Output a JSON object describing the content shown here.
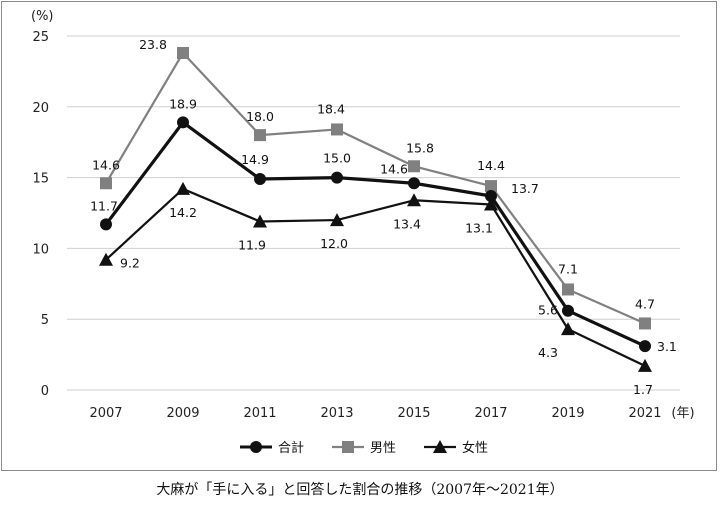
{
  "chart_data": {
    "type": "line",
    "categories": [
      "2007",
      "2009",
      "2011",
      "2013",
      "2015",
      "2017",
      "2019",
      "2021"
    ],
    "y_unit": "(%)",
    "x_unit": "(年)",
    "ylim": [
      0,
      25
    ],
    "yticks": [
      0,
      5,
      10,
      15,
      20,
      25
    ],
    "grid": true,
    "legend_position": "bottom-center",
    "series": [
      {
        "name": "合計",
        "marker": "circle",
        "color": "#111111",
        "values": [
          11.7,
          18.9,
          14.9,
          15.0,
          14.6,
          13.7,
          5.6,
          3.1
        ],
        "labels": [
          "11.7",
          "18.9",
          "14.9",
          "15.0",
          "14.6",
          "13.7",
          "5.6",
          "3.1"
        ]
      },
      {
        "name": "男性",
        "marker": "square",
        "color": "#808080",
        "values": [
          14.6,
          23.8,
          18.0,
          18.4,
          15.8,
          14.4,
          7.1,
          4.7
        ],
        "labels": [
          "14.6",
          "23.8",
          "18.0",
          "18.4",
          "15.8",
          "14.4",
          "7.1",
          "4.7"
        ]
      },
      {
        "name": "女性",
        "marker": "triangle",
        "color": "#111111",
        "values": [
          9.2,
          14.2,
          11.9,
          12.0,
          13.4,
          13.1,
          4.3,
          1.7
        ],
        "labels": [
          "9.2",
          "14.2",
          "11.9",
          "12.0",
          "13.4",
          "13.1",
          "4.3",
          "1.7"
        ]
      }
    ]
  },
  "caption": "大麻が「手に入る」と回答した割合の推移（2007年〜2021年）"
}
